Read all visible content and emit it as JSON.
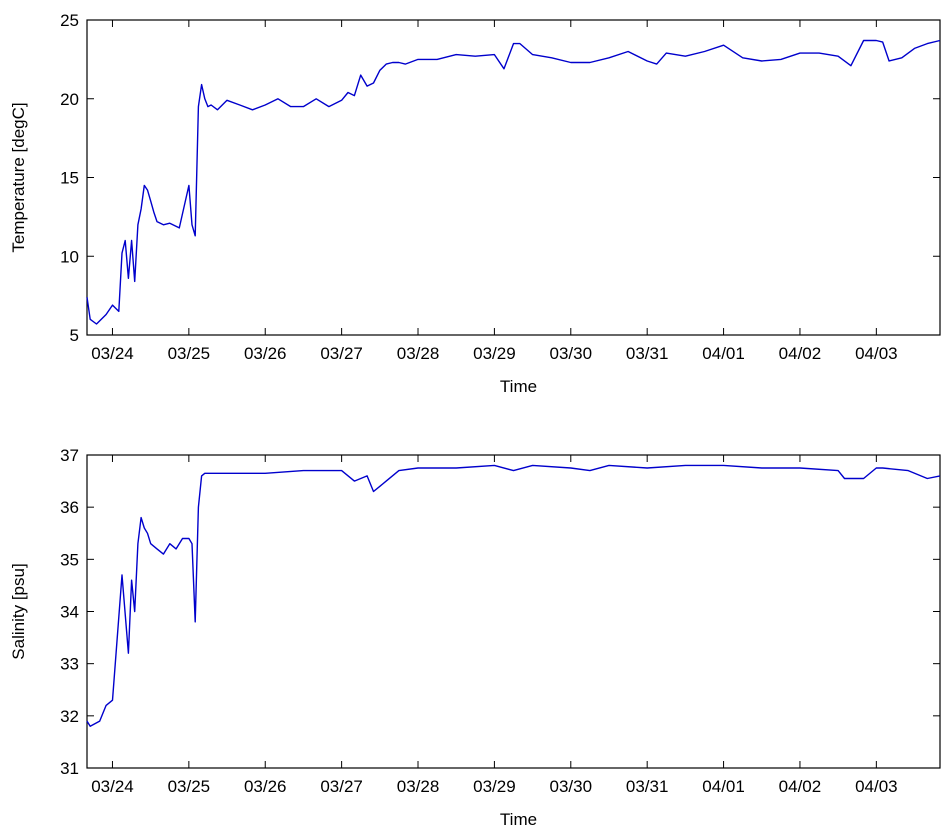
{
  "chart_data": [
    {
      "type": "line",
      "xlabel": "Time",
      "ylabel": "Temperature [degC]",
      "ylim": [
        5,
        25
      ],
      "yticks": [
        5,
        10,
        15,
        20,
        25
      ],
      "xlim": [
        "03/23 16:00",
        "04/03 20:00"
      ],
      "xticks": [
        "03/24",
        "03/25",
        "03/26",
        "03/27",
        "03/28",
        "03/29",
        "03/30",
        "03/31",
        "04/01",
        "04/02",
        "04/03"
      ],
      "grid": false,
      "line_color": "#0000cc",
      "series": [
        {
          "x": [
            "03/23 16:00",
            "03/23 17:00",
            "03/23 19:00",
            "03/23 22:00",
            "03/24 00:00",
            "03/24 02:00",
            "03/24 03:00",
            "03/24 04:00",
            "03/24 05:00",
            "03/24 06:00",
            "03/24 07:00",
            "03/24 08:00",
            "03/24 09:00",
            "03/24 10:00",
            "03/24 11:00",
            "03/24 12:00",
            "03/24 13:00",
            "03/24 14:00",
            "03/24 16:00",
            "03/24 18:00",
            "03/24 21:00",
            "03/25 00:00",
            "03/25 01:00",
            "03/25 02:00",
            "03/25 03:00",
            "03/25 04:00",
            "03/25 05:00",
            "03/25 06:00",
            "03/25 07:00",
            "03/25 09:00",
            "03/25 12:00",
            "03/25 16:00",
            "03/25 20:00",
            "03/26 00:00",
            "03/26 04:00",
            "03/26 08:00",
            "03/26 12:00",
            "03/26 16:00",
            "03/26 20:00",
            "03/27 00:00",
            "03/27 02:00",
            "03/27 04:00",
            "03/27 06:00",
            "03/27 08:00",
            "03/27 10:00",
            "03/27 12:00",
            "03/27 14:00",
            "03/27 16:00",
            "03/27 18:00",
            "03/27 20:00",
            "03/28 00:00",
            "03/28 06:00",
            "03/28 12:00",
            "03/28 18:00",
            "03/29 00:00",
            "03/29 03:00",
            "03/29 06:00",
            "03/29 08:00",
            "03/29 12:00",
            "03/29 18:00",
            "03/30 00:00",
            "03/30 06:00",
            "03/30 12:00",
            "03/30 18:00",
            "03/31 00:00",
            "03/31 03:00",
            "03/31 06:00",
            "03/31 12:00",
            "03/31 18:00",
            "04/01 00:00",
            "04/01 06:00",
            "04/01 12:00",
            "04/01 18:00",
            "04/02 00:00",
            "04/02 06:00",
            "04/02 12:00",
            "04/02 16:00",
            "04/02 20:00",
            "04/03 00:00",
            "04/03 02:00",
            "04/03 04:00",
            "04/03 08:00",
            "04/03 12:00",
            "04/03 16:00",
            "04/03 20:00"
          ],
          "y": [
            7.4,
            6.0,
            5.7,
            6.3,
            6.9,
            6.5,
            10.2,
            11.0,
            8.6,
            11.0,
            8.4,
            12.0,
            13.0,
            14.5,
            14.2,
            13.5,
            12.8,
            12.2,
            12.0,
            12.1,
            11.8,
            14.5,
            12.0,
            11.3,
            19.5,
            20.9,
            20.0,
            19.5,
            19.6,
            19.3,
            19.9,
            19.6,
            19.3,
            19.6,
            20.0,
            19.5,
            19.5,
            20.0,
            19.5,
            19.9,
            20.4,
            20.2,
            21.5,
            20.8,
            21.0,
            21.8,
            22.2,
            22.3,
            22.3,
            22.2,
            22.5,
            22.5,
            22.8,
            22.7,
            22.8,
            21.9,
            23.5,
            23.5,
            22.8,
            22.6,
            22.3,
            22.3,
            22.6,
            23.0,
            22.4,
            22.2,
            22.9,
            22.7,
            23.0,
            23.4,
            22.6,
            22.4,
            22.5,
            22.9,
            22.9,
            22.7,
            22.1,
            23.7,
            23.7,
            23.6,
            22.4,
            22.6,
            23.2,
            23.5,
            23.7
          ]
        }
      ]
    },
    {
      "type": "line",
      "xlabel": "Time",
      "ylabel": "Salinity [psu]",
      "ylim": [
        31,
        37
      ],
      "yticks": [
        31,
        32,
        33,
        34,
        35,
        36,
        37
      ],
      "xlim": [
        "03/23 16:00",
        "04/03 20:00"
      ],
      "xticks": [
        "03/24",
        "03/25",
        "03/26",
        "03/27",
        "03/28",
        "03/29",
        "03/30",
        "03/31",
        "04/01",
        "04/02",
        "04/03"
      ],
      "grid": false,
      "line_color": "#0000cc",
      "series": [
        {
          "x": [
            "03/23 16:00",
            "03/23 17:00",
            "03/23 20:00",
            "03/23 22:00",
            "03/24 00:00",
            "03/24 03:00",
            "03/24 05:00",
            "03/24 06:00",
            "03/24 07:00",
            "03/24 08:00",
            "03/24 09:00",
            "03/24 10:00",
            "03/24 11:00",
            "03/24 12:00",
            "03/24 14:00",
            "03/24 16:00",
            "03/24 18:00",
            "03/24 20:00",
            "03/24 22:00",
            "03/25 00:00",
            "03/25 01:00",
            "03/25 02:00",
            "03/25 03:00",
            "03/25 04:00",
            "03/25 05:00",
            "03/25 06:00",
            "03/25 12:00",
            "03/26 00:00",
            "03/26 12:00",
            "03/27 00:00",
            "03/27 04:00",
            "03/27 08:00",
            "03/27 10:00",
            "03/27 14:00",
            "03/27 18:00",
            "03/28 00:00",
            "03/28 12:00",
            "03/29 00:00",
            "03/29 06:00",
            "03/29 12:00",
            "03/30 00:00",
            "03/30 06:00",
            "03/30 12:00",
            "03/31 00:00",
            "03/31 12:00",
            "04/01 00:00",
            "04/01 12:00",
            "04/02 00:00",
            "04/02 12:00",
            "04/02 14:00",
            "04/02 20:00",
            "04/03 00:00",
            "04/03 02:00",
            "04/03 10:00",
            "04/03 16:00",
            "04/03 20:00"
          ],
          "y": [
            31.9,
            31.8,
            31.9,
            32.2,
            32.3,
            34.7,
            33.2,
            34.6,
            34.0,
            35.3,
            35.8,
            35.6,
            35.5,
            35.3,
            35.2,
            35.1,
            35.3,
            35.2,
            35.4,
            35.4,
            35.3,
            33.8,
            36.0,
            36.6,
            36.65,
            36.65,
            36.65,
            36.65,
            36.7,
            36.7,
            36.5,
            36.6,
            36.3,
            36.5,
            36.7,
            36.75,
            36.75,
            36.8,
            36.7,
            36.8,
            36.75,
            36.7,
            36.8,
            36.75,
            36.8,
            36.8,
            36.75,
            36.75,
            36.7,
            36.55,
            36.55,
            36.75,
            36.75,
            36.7,
            36.55,
            36.6
          ]
        }
      ]
    }
  ]
}
